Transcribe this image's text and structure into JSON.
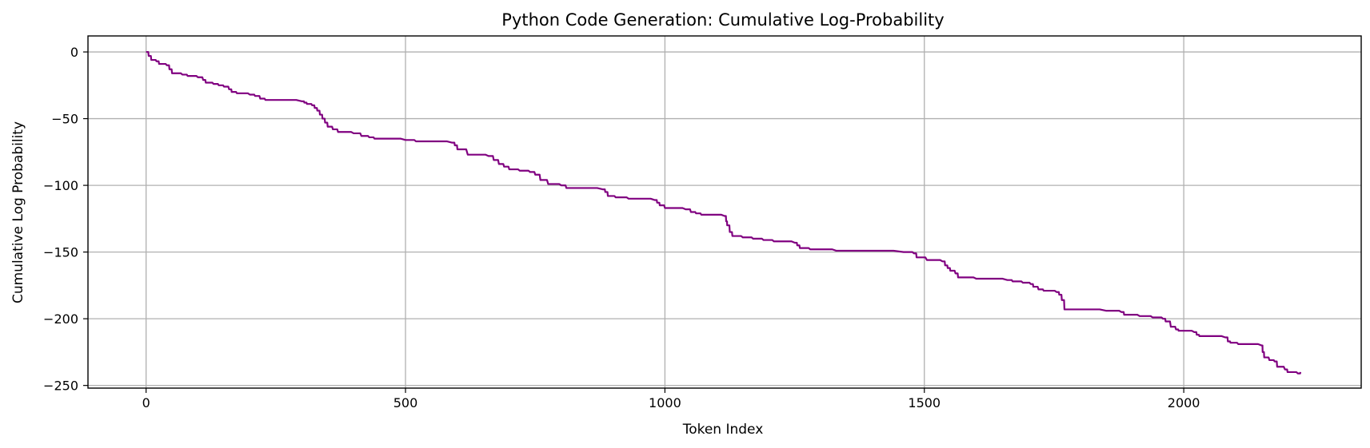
{
  "chart_data": {
    "type": "line",
    "title": "Python Code Generation: Cumulative Log-Probability",
    "xlabel": "Token Index",
    "ylabel": "Cumulative Log Probability",
    "xlim": [
      -112,
      2342
    ],
    "ylim": [
      -252,
      12
    ],
    "xticks": [
      0,
      500,
      1000,
      1500,
      2000
    ],
    "yticks": [
      0,
      -50,
      -100,
      -150,
      -200,
      -250
    ],
    "xtick_labels": [
      "0",
      "500",
      "1000",
      "1500",
      "2000"
    ],
    "ytick_labels": [
      "0",
      "−50",
      "−100",
      "−150",
      "−200",
      "−250"
    ],
    "grid": true,
    "legend": "none",
    "series": [
      {
        "color": "#800080",
        "points": [
          [
            0,
            0
          ],
          [
            5,
            -3
          ],
          [
            10,
            -6
          ],
          [
            20,
            -7
          ],
          [
            25,
            -9
          ],
          [
            40,
            -10
          ],
          [
            45,
            -13
          ],
          [
            50,
            -16
          ],
          [
            70,
            -17
          ],
          [
            80,
            -18
          ],
          [
            100,
            -19
          ],
          [
            110,
            -21
          ],
          [
            115,
            -23
          ],
          [
            130,
            -24
          ],
          [
            140,
            -25
          ],
          [
            150,
            -26
          ],
          [
            160,
            -28
          ],
          [
            165,
            -30
          ],
          [
            175,
            -31
          ],
          [
            200,
            -32
          ],
          [
            210,
            -33
          ],
          [
            220,
            -35
          ],
          [
            230,
            -36
          ],
          [
            300,
            -37
          ],
          [
            305,
            -38
          ],
          [
            310,
            -39
          ],
          [
            320,
            -40
          ],
          [
            325,
            -42
          ],
          [
            330,
            -44
          ],
          [
            335,
            -47
          ],
          [
            340,
            -50
          ],
          [
            345,
            -53
          ],
          [
            350,
            -56
          ],
          [
            360,
            -58
          ],
          [
            370,
            -60
          ],
          [
            400,
            -61
          ],
          [
            415,
            -63
          ],
          [
            430,
            -64
          ],
          [
            440,
            -65
          ],
          [
            500,
            -66
          ],
          [
            520,
            -67
          ],
          [
            590,
            -68
          ],
          [
            595,
            -70
          ],
          [
            600,
            -73
          ],
          [
            620,
            -77
          ],
          [
            660,
            -78
          ],
          [
            670,
            -81
          ],
          [
            680,
            -84
          ],
          [
            690,
            -86
          ],
          [
            700,
            -88
          ],
          [
            720,
            -89
          ],
          [
            740,
            -90
          ],
          [
            750,
            -92
          ],
          [
            760,
            -96
          ],
          [
            775,
            -99
          ],
          [
            800,
            -100
          ],
          [
            810,
            -102
          ],
          [
            880,
            -103
          ],
          [
            885,
            -105
          ],
          [
            890,
            -108
          ],
          [
            905,
            -109
          ],
          [
            930,
            -110
          ],
          [
            980,
            -111
          ],
          [
            985,
            -113
          ],
          [
            990,
            -115
          ],
          [
            1000,
            -117
          ],
          [
            1040,
            -118
          ],
          [
            1050,
            -120
          ],
          [
            1060,
            -121
          ],
          [
            1070,
            -122
          ],
          [
            1115,
            -123
          ],
          [
            1118,
            -127
          ],
          [
            1120,
            -130
          ],
          [
            1125,
            -135
          ],
          [
            1130,
            -138
          ],
          [
            1150,
            -139
          ],
          [
            1170,
            -140
          ],
          [
            1190,
            -141
          ],
          [
            1210,
            -142
          ],
          [
            1250,
            -143
          ],
          [
            1255,
            -145
          ],
          [
            1260,
            -147
          ],
          [
            1280,
            -148
          ],
          [
            1330,
            -149
          ],
          [
            1460,
            -150
          ],
          [
            1480,
            -151
          ],
          [
            1485,
            -154
          ],
          [
            1505,
            -156
          ],
          [
            1535,
            -157
          ],
          [
            1540,
            -160
          ],
          [
            1545,
            -162
          ],
          [
            1550,
            -164
          ],
          [
            1560,
            -166
          ],
          [
            1565,
            -169
          ],
          [
            1600,
            -170
          ],
          [
            1660,
            -171
          ],
          [
            1670,
            -172
          ],
          [
            1690,
            -173
          ],
          [
            1705,
            -174
          ],
          [
            1710,
            -176
          ],
          [
            1720,
            -178
          ],
          [
            1730,
            -179
          ],
          [
            1755,
            -180
          ],
          [
            1760,
            -182
          ],
          [
            1765,
            -186
          ],
          [
            1770,
            -193
          ],
          [
            1850,
            -194
          ],
          [
            1880,
            -195
          ],
          [
            1885,
            -197
          ],
          [
            1915,
            -198
          ],
          [
            1940,
            -199
          ],
          [
            1960,
            -200
          ],
          [
            1965,
            -202
          ],
          [
            1975,
            -206
          ],
          [
            1985,
            -208
          ],
          [
            1990,
            -209
          ],
          [
            2020,
            -210
          ],
          [
            2025,
            -212
          ],
          [
            2030,
            -213
          ],
          [
            2080,
            -214
          ],
          [
            2085,
            -217
          ],
          [
            2090,
            -218
          ],
          [
            2105,
            -219
          ],
          [
            2150,
            -220
          ],
          [
            2152,
            -225
          ],
          [
            2155,
            -229
          ],
          [
            2165,
            -231
          ],
          [
            2175,
            -232
          ],
          [
            2180,
            -236
          ],
          [
            2195,
            -238
          ],
          [
            2200,
            -240
          ],
          [
            2220,
            -241
          ],
          [
            2225,
            -240
          ]
        ]
      }
    ]
  }
}
